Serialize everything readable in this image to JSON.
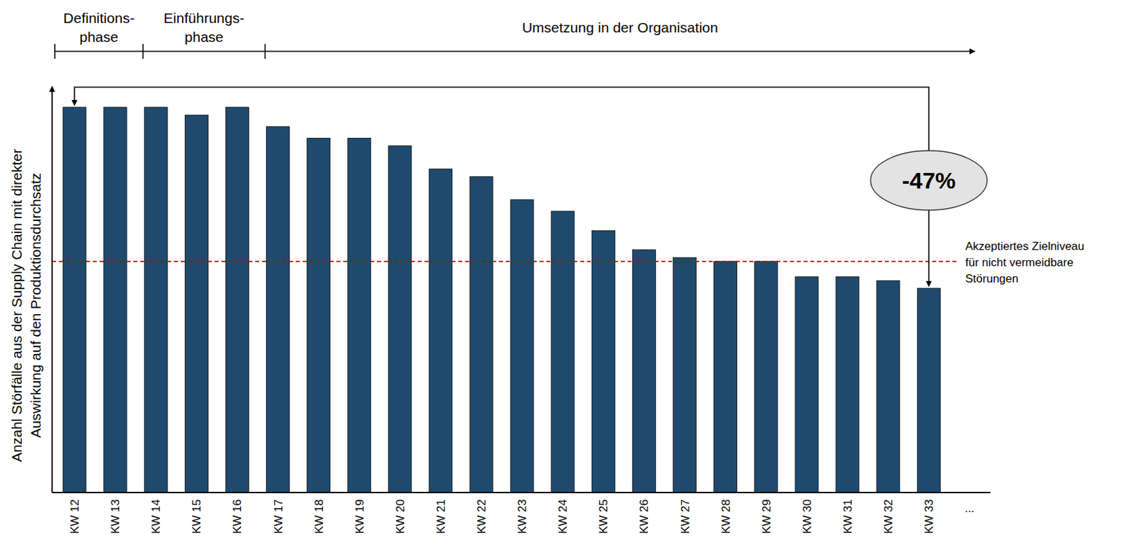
{
  "chart_data": {
    "type": "bar",
    "ylabel": [
      "Anzahl Störfälle aus der Supply Chain mit direkter",
      "Auswirkung auf den Produktionsdurchsatz"
    ],
    "categories": [
      "KW 12",
      "KW 13",
      "KW 14",
      "KW 15",
      "KW 16",
      "KW 17",
      "KW 18",
      "KW 19",
      "KW 20",
      "KW 21",
      "KW 22",
      "KW 23",
      "KW 24",
      "KW 25",
      "KW 26",
      "KW 27",
      "KW 28",
      "KW 29",
      "KW 30",
      "KW 31",
      "KW 32",
      "KW 33",
      "..."
    ],
    "values": [
      100,
      100,
      100,
      98,
      100,
      95,
      92,
      92,
      90,
      84,
      82,
      76,
      73,
      68,
      63,
      61,
      60,
      60,
      56,
      56,
      55,
      53,
      null
    ],
    "color": "#1f4a6e",
    "ylim": [
      0,
      104
    ],
    "yticks": [],
    "tick_labels": "x",
    "reference_line": {
      "value": 60,
      "label": [
        "Akzeptiertes Zielniveau",
        "für nicht vermeidbare",
        "Störungen"
      ]
    },
    "change": {
      "label": "-47%",
      "from": "KW 12",
      "to": "KW 33"
    },
    "phases": [
      {
        "label": [
          "Definitions-",
          "phase"
        ],
        "start": "KW 12"
      },
      {
        "label": [
          "Einführungs-",
          "phase"
        ],
        "start": "KW 14"
      },
      {
        "label": [
          "Umsetzung in der Organisation"
        ],
        "start": "KW 17"
      }
    ]
  }
}
